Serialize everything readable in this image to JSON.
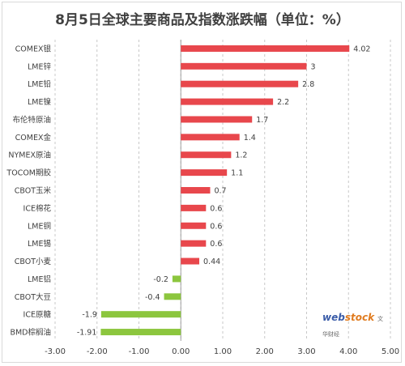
{
  "chart_data": {
    "type": "bar",
    "orientation": "horizontal",
    "title": "8月5日全球主要商品及指数涨跌幅（单位：%）",
    "categories": [
      "COMEX银",
      "LME锌",
      "LME铅",
      "LME镍",
      "布伦特原油",
      "COMEX金",
      "NYMEX原油",
      "TOCOM期胶",
      "CBOT玉米",
      "ICE棉花",
      "LME铜",
      "LME锡",
      "CBOT小麦",
      "LME铝",
      "CBOT大豆",
      "ICE原糖",
      "BMD棕榈油"
    ],
    "values": [
      4.02,
      3,
      2.8,
      2.2,
      1.7,
      1.4,
      1.2,
      1.1,
      0.7,
      0.6,
      0.6,
      0.6,
      0.44,
      -0.2,
      -0.4,
      -1.9,
      -1.91
    ],
    "value_labels": [
      "4.02",
      "3",
      "2.8",
      "2.2",
      "1.7",
      "1.4",
      "1.2",
      "1.1",
      "0.7",
      "0.6",
      "0.6",
      "0.6",
      "0.44",
      "-0.2",
      "-0.4",
      "-1.9",
      "-1.91"
    ],
    "xlim": [
      -3,
      5
    ],
    "xticks": [
      "-3.00",
      "-2.00",
      "-1.00",
      "0.00",
      "1.00",
      "2.00",
      "3.00",
      "4.00",
      "5.00"
    ],
    "xlabel": "",
    "ylabel": "",
    "grid": "vertical dashed",
    "legend": "none",
    "colors": {
      "positive": "#e8474c",
      "negative": "#8cc63e",
      "grid": "#c8c8c8",
      "axis": "#a0a0a0"
    }
  },
  "watermark": {
    "web": "web",
    "stock": "stock",
    "cn": "文华财经"
  }
}
